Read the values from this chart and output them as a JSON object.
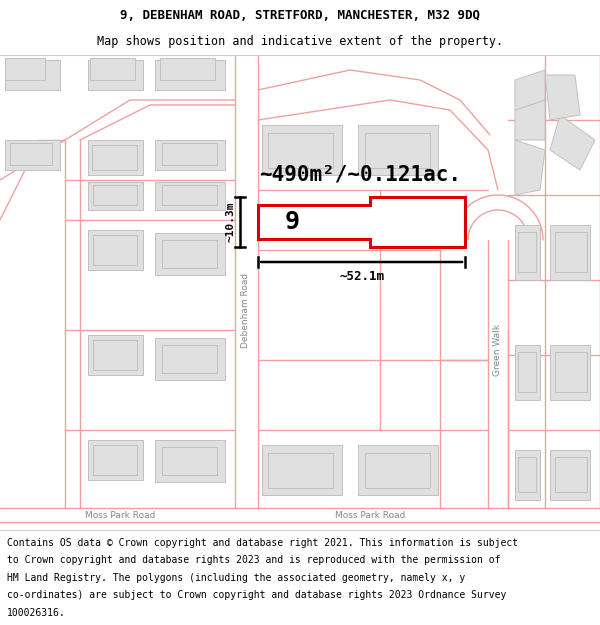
{
  "title_line1": "9, DEBENHAM ROAD, STRETFORD, MANCHESTER, M32 9DQ",
  "title_line2": "Map shows position and indicative extent of the property.",
  "footer_lines": [
    "Contains OS data © Crown copyright and database right 2021. This information is subject",
    "to Crown copyright and database rights 2023 and is reproduced with the permission of",
    "HM Land Registry. The polygons (including the associated geometry, namely x, y",
    "co-ordinates) are subject to Crown copyright and database rights 2023 Ordnance Survey",
    "100026316."
  ],
  "area_label": "~490m²/~0.121ac.",
  "width_label": "~52.1m",
  "height_label": "~10.3m",
  "property_number": "9",
  "bg_color": "#ffffff",
  "road_color": "#f0a0a0",
  "building_fill": "#e0e0e0",
  "building_stroke": "#c0c0c0",
  "property_stroke": "#dd0000",
  "property_fill": "#ffffff",
  "street_label_color": "#888888",
  "dim_line_color": "#111111",
  "title_fontsize": 9,
  "subtitle_fontsize": 8.5,
  "footer_fontsize": 7.0,
  "map_xlim": [
    0,
    600
  ],
  "map_ylim": [
    0,
    475
  ]
}
